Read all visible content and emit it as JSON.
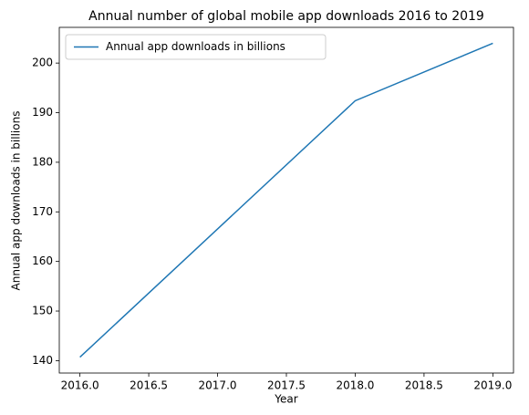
{
  "chart_data": {
    "type": "line",
    "title": "Annual number of global mobile app downloads 2016 to 2019",
    "x_label": "Year",
    "y_label": "Annual app downloads in billions",
    "x": [
      2016,
      2018,
      2019
    ],
    "series": [
      {
        "name": "Annual app downloads in billions",
        "color": "#1f77b4",
        "values": [
          140.7,
          192.4,
          204
        ]
      }
    ],
    "xlim": [
      2015.85,
      2019.15
    ],
    "xticks": [
      {
        "value": 2016,
        "label": "2016.0"
      },
      {
        "value": 2016.5,
        "label": "2016.5"
      },
      {
        "value": 2017,
        "label": "2017.0"
      },
      {
        "value": 2017.5,
        "label": "2017.5"
      },
      {
        "value": 2018,
        "label": "2018.0"
      },
      {
        "value": 2018.5,
        "label": "2018.5"
      },
      {
        "value": 2019,
        "label": "2019.0"
      }
    ],
    "ylim": [
      137.5,
      207.2
    ],
    "yticks": [
      140,
      150,
      160,
      170,
      180,
      190,
      200
    ],
    "legend": "upper left",
    "grid": false
  }
}
